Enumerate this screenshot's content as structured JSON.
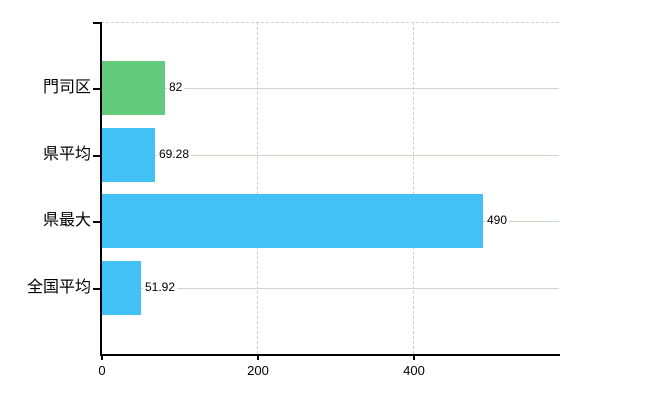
{
  "chart_data": {
    "type": "bar",
    "orientation": "horizontal",
    "title": "",
    "xlabel": "",
    "ylabel": "",
    "categories": [
      "門司区",
      "県平均",
      "県最大",
      "全国平均"
    ],
    "values": [
      82,
      69.28,
      490,
      51.92
    ],
    "value_labels": [
      "82",
      "69.28",
      "490",
      "51.92"
    ],
    "bar_colors": [
      "#61cb7b",
      "#42c1f4",
      "#42c1f4",
      "#42c1f4"
    ],
    "xlim": [
      0,
      588
    ],
    "x_ticks": [
      0,
      200,
      400
    ],
    "x_tick_labels": [
      "0",
      "200",
      "400"
    ],
    "grid": true,
    "legend": false
  },
  "colors": {
    "background": "#ffffff",
    "axis": "#000000",
    "grid_horizontal": "#ccd6cc",
    "grid_vertical_dashed": "#c9d3c9",
    "plot_top_border_dashed": "#cfd4cf",
    "text": "#000000"
  }
}
